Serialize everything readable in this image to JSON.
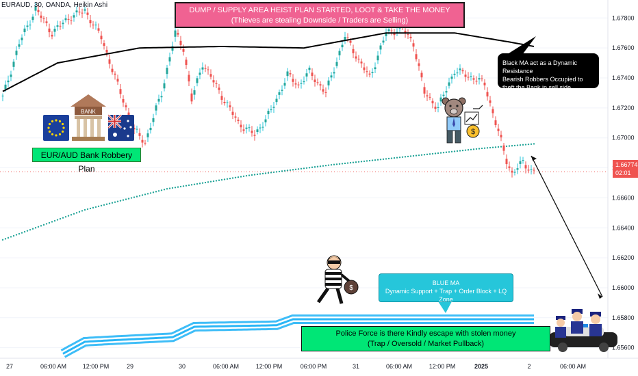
{
  "symbol_label": "EURAUD, 30, OANDA, Heikin Ashi",
  "price_axis": {
    "ticks": [
      "1.67800",
      "1.67600",
      "1.67400",
      "1.67200",
      "1.67000",
      "1.66800",
      "1.66600",
      "1.66400",
      "1.66200",
      "1.66000",
      "1.65800",
      "1.65600"
    ],
    "current_price": "1.66774",
    "countdown": "02:01"
  },
  "time_axis": {
    "ticks": [
      "27",
      "06:00 AM",
      "12:00 PM",
      "29",
      "30",
      "06:00 AM",
      "12:00 PM",
      "06:00 PM",
      "31",
      "06:00 AM",
      "12:00 PM",
      "2025",
      "2",
      "06:00 AM"
    ]
  },
  "annotations": {
    "dump_title": "DUMP / SUPPLY AREA HEIST PLAN STARTED, LOOT & TAKE THE MONEY",
    "dump_subtitle": "(Thieves are stealing Downside / Traders are Selling)",
    "black_ma_lines": [
      "Black MA act as a Dynamic Resistance",
      "Bearish Robbers Occupied to",
      "theft the Bank in sell side"
    ],
    "blue_ma_title": "BLUE MA",
    "blue_ma_desc": "Dynamic Support + Trap + Order Block + LQ Zone",
    "police_line1": "Police Force is there Kindly escape with stolen money",
    "police_line2": "(Trap / Oversold / Market Pullback)",
    "plan_label": "EUR/AUD Bank Robbery Plan",
    "bank_label": "BANK"
  },
  "colors": {
    "bull": "#26a69a",
    "bear": "#ef5350",
    "bull_wick": "#26c6da",
    "black_ma": "#000000",
    "teal_dotted_ma": "#26a69a",
    "blue_band": "#29b6f6",
    "dump_box": "#f06292",
    "green_box": "#00e676",
    "price_line": "#ef5350"
  },
  "icons": [
    "eu-flag-icon",
    "bank-building-icon",
    "australia-flag-icon",
    "bear-trader-icon",
    "robber-icon",
    "police-icon"
  ],
  "chart_data": {
    "type": "candlestick",
    "style": "Heikin Ashi",
    "instrument": "EURAUD",
    "timeframe": "30",
    "ylim": [
      1.6553,
      1.6792
    ],
    "x_tick_labels": [
      "27",
      "06:00 AM",
      "12:00 PM",
      "29",
      "30",
      "06:00 AM",
      "12:00 PM",
      "06:00 PM",
      "31",
      "06:00 AM",
      "12:00 PM",
      "2025",
      "2",
      "06:00 AM"
    ],
    "close_path": [
      {
        "bar": 0,
        "close": 1.6727
      },
      {
        "bar": 6,
        "close": 1.6763
      },
      {
        "bar": 12,
        "close": 1.6786
      },
      {
        "bar": 18,
        "close": 1.677
      },
      {
        "bar": 24,
        "close": 1.678
      },
      {
        "bar": 30,
        "close": 1.6785
      },
      {
        "bar": 36,
        "close": 1.6767
      },
      {
        "bar": 42,
        "close": 1.6735
      },
      {
        "bar": 48,
        "close": 1.6705
      },
      {
        "bar": 52,
        "close": 1.6697
      },
      {
        "bar": 58,
        "close": 1.673
      },
      {
        "bar": 63,
        "close": 1.677
      },
      {
        "bar": 66,
        "close": 1.676
      },
      {
        "bar": 69,
        "close": 1.6725
      },
      {
        "bar": 73,
        "close": 1.675
      },
      {
        "bar": 80,
        "close": 1.6728
      },
      {
        "bar": 86,
        "close": 1.671
      },
      {
        "bar": 92,
        "close": 1.6702
      },
      {
        "bar": 98,
        "close": 1.6718
      },
      {
        "bar": 104,
        "close": 1.6742
      },
      {
        "bar": 108,
        "close": 1.6735
      },
      {
        "bar": 112,
        "close": 1.6744
      },
      {
        "bar": 118,
        "close": 1.673
      },
      {
        "bar": 125,
        "close": 1.6768
      },
      {
        "bar": 130,
        "close": 1.6752
      },
      {
        "bar": 134,
        "close": 1.674
      },
      {
        "bar": 140,
        "close": 1.677
      },
      {
        "bar": 146,
        "close": 1.6773
      },
      {
        "bar": 150,
        "close": 1.6763
      },
      {
        "bar": 154,
        "close": 1.673
      },
      {
        "bar": 159,
        "close": 1.672
      },
      {
        "bar": 165,
        "close": 1.6745
      },
      {
        "bar": 172,
        "close": 1.674
      },
      {
        "bar": 176,
        "close": 1.6736
      },
      {
        "bar": 180,
        "close": 1.671
      },
      {
        "bar": 184,
        "close": 1.6685
      },
      {
        "bar": 186,
        "close": 1.6676
      },
      {
        "bar": 190,
        "close": 1.6684
      },
      {
        "bar": 193,
        "close": 1.6678
      }
    ],
    "black_ma": [
      {
        "bar": 0,
        "v": 1.6731
      },
      {
        "bar": 20,
        "v": 1.675
      },
      {
        "bar": 50,
        "v": 1.676
      },
      {
        "bar": 80,
        "v": 1.6761
      },
      {
        "bar": 110,
        "v": 1.676
      },
      {
        "bar": 140,
        "v": 1.677
      },
      {
        "bar": 165,
        "v": 1.677
      },
      {
        "bar": 185,
        "v": 1.6764
      },
      {
        "bar": 194,
        "v": 1.6761
      }
    ],
    "teal_ma": [
      {
        "bar": 0,
        "v": 1.6632
      },
      {
        "bar": 30,
        "v": 1.6652
      },
      {
        "bar": 60,
        "v": 1.6666
      },
      {
        "bar": 90,
        "v": 1.6675
      },
      {
        "bar": 120,
        "v": 1.6682
      },
      {
        "bar": 150,
        "v": 1.6688
      },
      {
        "bar": 175,
        "v": 1.6693
      },
      {
        "bar": 194,
        "v": 1.6696
      }
    ],
    "blue_band": [
      {
        "bar": 22,
        "v": 1.6556
      },
      {
        "bar": 30,
        "v": 1.6564
      },
      {
        "bar": 40,
        "v": 1.6565
      },
      {
        "bar": 62,
        "v": 1.6567
      },
      {
        "bar": 70,
        "v": 1.6574
      },
      {
        "bar": 100,
        "v": 1.6575
      },
      {
        "bar": 106,
        "v": 1.6579
      },
      {
        "bar": 194,
        "v": 1.6579
      }
    ],
    "current_price": 1.66774,
    "projection": {
      "from_price": 1.6688,
      "to_price": 1.6594
    }
  }
}
